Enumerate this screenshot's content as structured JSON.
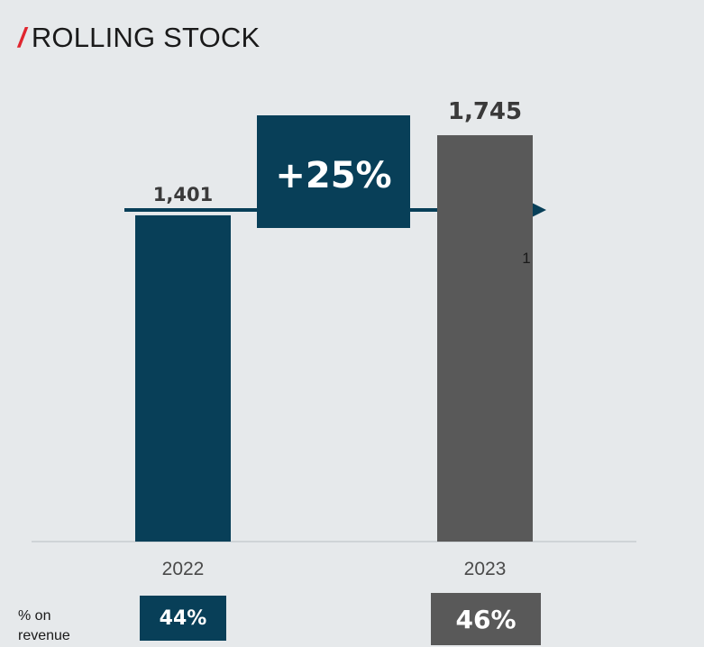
{
  "header": {
    "slash": "/",
    "title": "ROLLING STOCK"
  },
  "growth": {
    "label": "+25%"
  },
  "footnote": "1",
  "pct_label": "% on revenue",
  "colors": {
    "background": "#e6e9eb",
    "navy": "#083f58",
    "gray": "#595959",
    "accent_red": "#e0262f"
  },
  "chart_data": {
    "type": "bar",
    "title": "ROLLING STOCK",
    "categories": [
      "2022",
      "2023"
    ],
    "values": [
      1401,
      1745
    ],
    "value_labels": [
      "1,401",
      "1,745"
    ],
    "bar_colors": [
      "#083f58",
      "#595959"
    ],
    "ylim": [
      0,
      1900
    ],
    "grid": false,
    "annotations": {
      "growth": "+25%",
      "footnote_marker": "1"
    },
    "pct_on_revenue": [
      "44%",
      "46%"
    ]
  }
}
